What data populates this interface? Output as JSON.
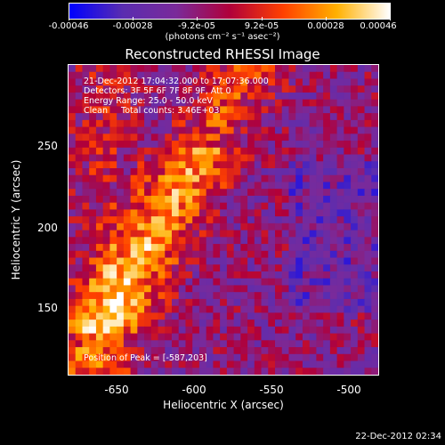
{
  "colorbar": {
    "tick_labels": [
      "-0.00046",
      "-0.00028",
      "-9.2e-05",
      "9.2e-05",
      "0.00028",
      "0.00046"
    ],
    "units": "(photons cm⁻² s⁻¹ asec⁻²)",
    "colors": [
      "#0000ff",
      "#5a2db0",
      "#7a2a9a",
      "#b0003a",
      "#ff4000",
      "#ffb000",
      "#ffffff"
    ]
  },
  "title": "Reconstructed RHESSI Image",
  "info_lines": [
    "21-Dec-2012 17:04:32.000 to 17:07:36.000",
    "Detectors: 3F 5F 6F 7F 8F 9F, Att 0",
    "Energy Range: 25.0 - 50.0 keV",
    "Clean     Total counts: 3.46E+03"
  ],
  "peak_text": "Position of Peak = [-587,203]",
  "x_axis": {
    "label": "Heliocentric X (arcsec)",
    "ticks": [
      "-650",
      "-600",
      "-550",
      "-500"
    ],
    "range": [
      -678,
      -490
    ]
  },
  "y_axis": {
    "label": "Heliocentric Y (arcsec)",
    "ticks": [
      "250",
      "200",
      "150"
    ],
    "range": [
      105,
      290
    ]
  },
  "footer_date": "22-Dec-2012 02:34"
}
